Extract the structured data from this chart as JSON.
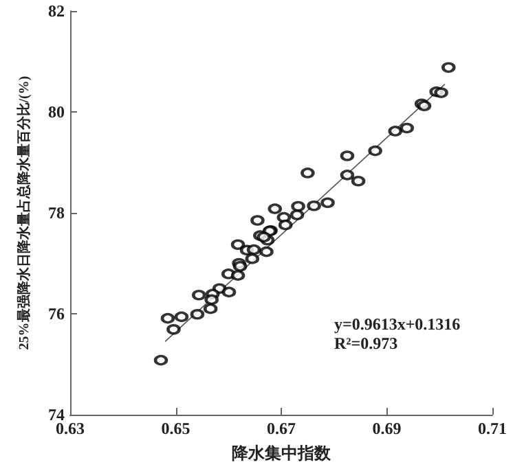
{
  "chart_data": {
    "type": "scatter",
    "xlabel": "降水集中指数",
    "ylabel": "25%最强降水日降水量占总降水量百分比/(%)",
    "xlim": [
      0.63,
      0.71
    ],
    "xticks": [
      0.63,
      0.65,
      0.67,
      0.69,
      0.71
    ],
    "ylim": [
      74,
      82
    ],
    "yticks": [
      74,
      76,
      78,
      80,
      82
    ],
    "grid": false,
    "series": [
      {
        "color": "#000000",
        "marker": "circle",
        "x": [
          0.7017,
          0.6994,
          0.7003,
          0.6966,
          0.6971,
          0.6916,
          0.6938,
          0.6878,
          0.6825,
          0.6825,
          0.6846,
          0.675,
          0.6788,
          0.6762,
          0.6732,
          0.6688,
          0.673,
          0.6705,
          0.6708,
          0.668,
          0.6655,
          0.6678,
          0.666,
          0.6674,
          0.6667,
          0.6618,
          0.6635,
          0.6648,
          0.6672,
          0.6645,
          0.662,
          0.6622,
          0.66,
          0.6618,
          0.6583,
          0.6601,
          0.657,
          0.6544,
          0.6568,
          0.6541,
          0.6566,
          0.6511,
          0.6485,
          0.6496,
          0.6472
        ],
        "values": [
          80.88,
          80.4,
          80.38,
          80.16,
          80.12,
          79.62,
          79.68,
          79.23,
          79.13,
          78.75,
          78.63,
          78.79,
          78.2,
          78.14,
          78.13,
          78.08,
          77.96,
          77.91,
          77.76,
          77.65,
          77.85,
          77.64,
          77.55,
          77.46,
          77.52,
          77.37,
          77.26,
          77.27,
          77.23,
          77.09,
          77.0,
          76.94,
          76.79,
          76.76,
          76.5,
          76.43,
          76.39,
          76.37,
          76.28,
          75.99,
          76.1,
          75.94,
          75.91,
          75.69,
          75.08
        ]
      },
      {
        "type": "line",
        "marker": "none",
        "color": "#555555",
        "x": [
          0.648,
          0.701
        ],
        "values": [
          75.45,
          80.55
        ]
      }
    ],
    "annotations": [
      "y=0.9613x+0.1316",
      "R²=0.973"
    ]
  }
}
